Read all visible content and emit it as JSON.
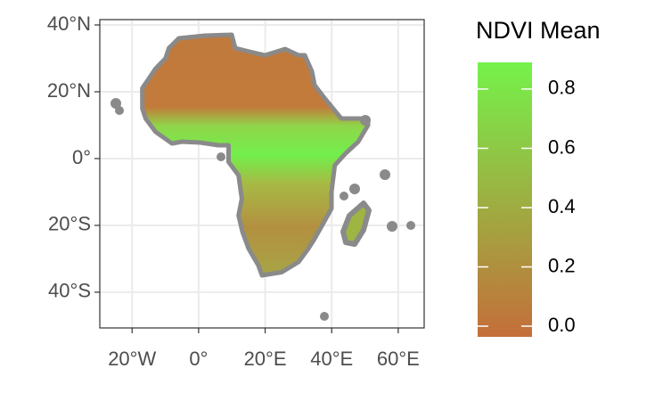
{
  "chart_data": {
    "type": "map",
    "xlim": [
      -29.7,
      67.8
    ],
    "ylim": [
      -50.7,
      41.6
    ],
    "xticks": [
      {
        "value": -20,
        "label": "20°W"
      },
      {
        "value": 0,
        "label": "0°"
      },
      {
        "value": 20,
        "label": "20°E"
      },
      {
        "value": 40,
        "label": "40°E"
      },
      {
        "value": 60,
        "label": "60°E"
      }
    ],
    "yticks": [
      {
        "value": 40,
        "label": "40°N"
      },
      {
        "value": 20,
        "label": "20°N"
      },
      {
        "value": 0,
        "label": "0°"
      },
      {
        "value": -20,
        "label": "20°S"
      },
      {
        "value": -40,
        "label": "40°S"
      }
    ],
    "grid": true,
    "legend": {
      "title": "NDVI Mean",
      "colors": [
        "#c46e3a",
        "#75f24a"
      ],
      "lim": [
        -0.036,
        0.89
      ],
      "ticks": [
        {
          "value": 0,
          "label": "0.0"
        },
        0.2,
        0.4,
        0.6,
        0.8
      ]
    },
    "legend_position": "right"
  }
}
